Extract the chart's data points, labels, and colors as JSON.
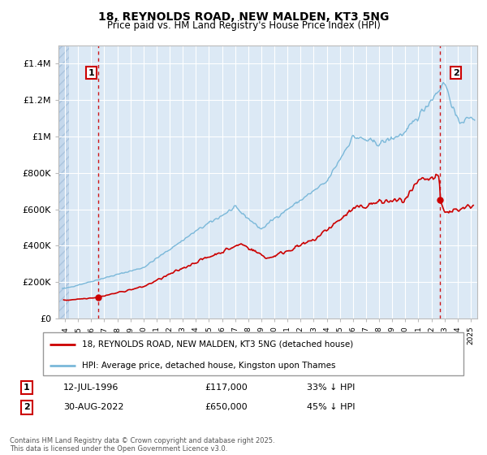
{
  "title": "18, REYNOLDS ROAD, NEW MALDEN, KT3 5NG",
  "subtitle": "Price paid vs. HM Land Registry's House Price Index (HPI)",
  "legend_line1": "18, REYNOLDS ROAD, NEW MALDEN, KT3 5NG (detached house)",
  "legend_line2": "HPI: Average price, detached house, Kingston upon Thames",
  "annotation1_date": "12-JUL-1996",
  "annotation1_price": "£117,000",
  "annotation1_hpi": "33% ↓ HPI",
  "annotation1_year": 1996.53,
  "annotation1_value": 117000,
  "annotation2_date": "30-AUG-2022",
  "annotation2_price": "£650,000",
  "annotation2_hpi": "45% ↓ HPI",
  "annotation2_year": 2022.66,
  "annotation2_value": 650000,
  "footer": "Contains HM Land Registry data © Crown copyright and database right 2025.\nThis data is licensed under the Open Government Licence v3.0.",
  "hpi_color": "#7ab8d9",
  "price_color": "#cc0000",
  "plot_bg_color": "#dce9f5",
  "hatch_color": "#c5d8ec",
  "grid_color": "#ffffff",
  "ylim": [
    0,
    1500000
  ],
  "xlim_start": 1993.5,
  "xlim_end": 2025.5
}
